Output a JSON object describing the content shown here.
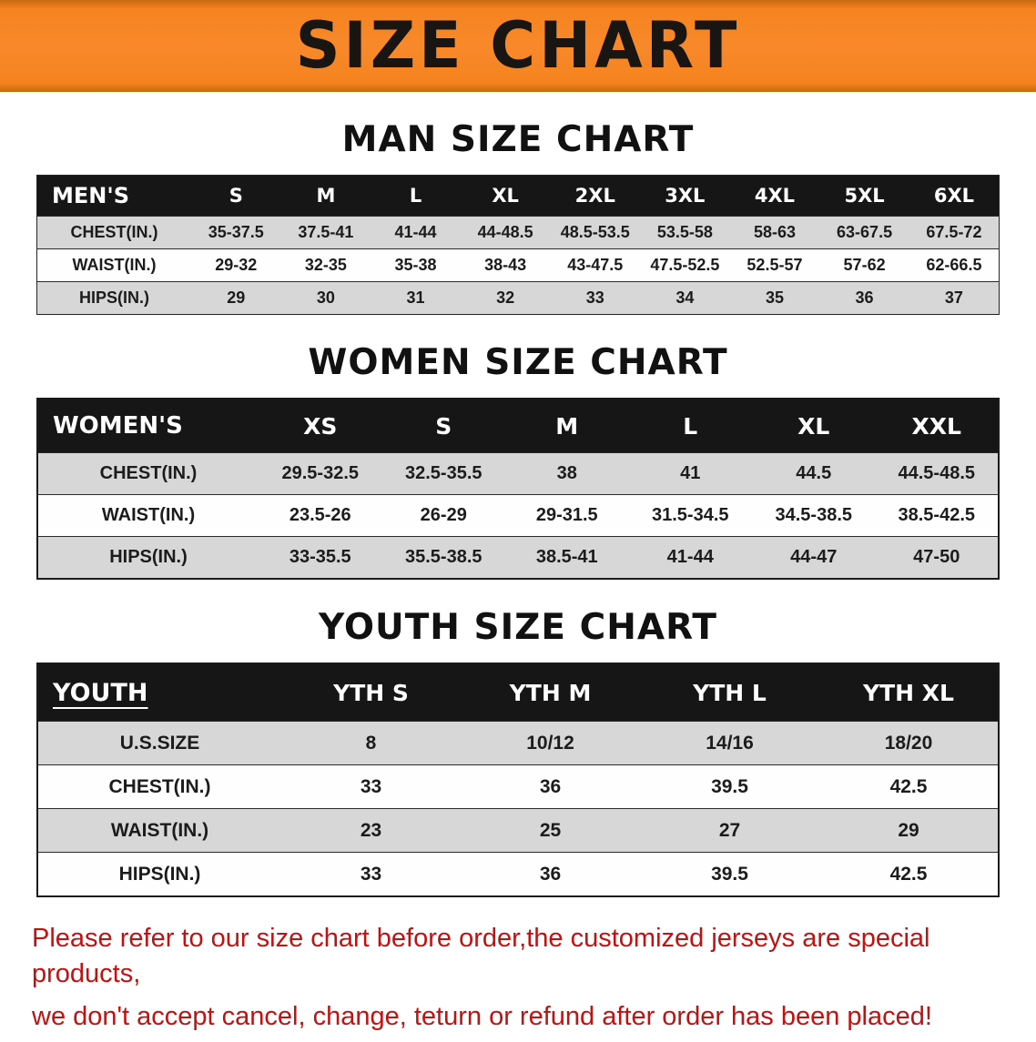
{
  "banner": {
    "title": "SIZE CHART"
  },
  "colors": {
    "banner_orange": "#f5831f",
    "header_black": "#161616",
    "row_gray": "#d7d7d7",
    "disclaimer_red": "#c11111"
  },
  "sections": [
    {
      "heading": "MAN SIZE CHART",
      "header": [
        "MEN'S",
        "S",
        "M",
        "L",
        "XL",
        "2XL",
        "3XL",
        "4XL",
        "5XL",
        "6XL"
      ],
      "rows": [
        [
          "CHEST(IN.)",
          "35-37.5",
          "37.5-41",
          "41-44",
          "44-48.5",
          "48.5-53.5",
          "53.5-58",
          "58-63",
          "63-67.5",
          "67.5-72"
        ],
        [
          "WAIST(IN.)",
          "29-32",
          "32-35",
          "35-38",
          "38-43",
          "43-47.5",
          "47.5-52.5",
          "52.5-57",
          "57-62",
          "62-66.5"
        ],
        [
          "HIPS(IN.)",
          "29",
          "30",
          "31",
          "32",
          "33",
          "34",
          "35",
          "36",
          "37"
        ]
      ]
    },
    {
      "heading": "WOMEN SIZE CHART",
      "header": [
        "WOMEN'S",
        "XS",
        "S",
        "M",
        "L",
        "XL",
        "XXL"
      ],
      "rows": [
        [
          "CHEST(IN.)",
          "29.5-32.5",
          "32.5-35.5",
          "38",
          "41",
          "44.5",
          "44.5-48.5"
        ],
        [
          "WAIST(IN.)",
          "23.5-26",
          "26-29",
          "29-31.5",
          "31.5-34.5",
          "34.5-38.5",
          "38.5-42.5"
        ],
        [
          "HIPS(IN.)",
          "33-35.5",
          "35.5-38.5",
          "38.5-41",
          "41-44",
          "44-47",
          "47-50"
        ]
      ]
    },
    {
      "heading": "YOUTH SIZE CHART",
      "header": [
        "YOUTH",
        "YTH S",
        "YTH M",
        "YTH L",
        "YTH XL"
      ],
      "rows": [
        [
          "U.S.SIZE",
          "8",
          "10/12",
          "14/16",
          "18/20"
        ],
        [
          "CHEST(IN.)",
          "33",
          "36",
          "39.5",
          "42.5"
        ],
        [
          "WAIST(IN.)",
          "23",
          "25",
          "27",
          "29"
        ],
        [
          "HIPS(IN.)",
          "33",
          "36",
          "39.5",
          "42.5"
        ]
      ]
    }
  ],
  "disclaimer": {
    "line1": "Please refer to our size chart before order,the customized jerseys are special products,",
    "line2": "we don't accept cancel, change, teturn or refund after order has been placed!"
  }
}
